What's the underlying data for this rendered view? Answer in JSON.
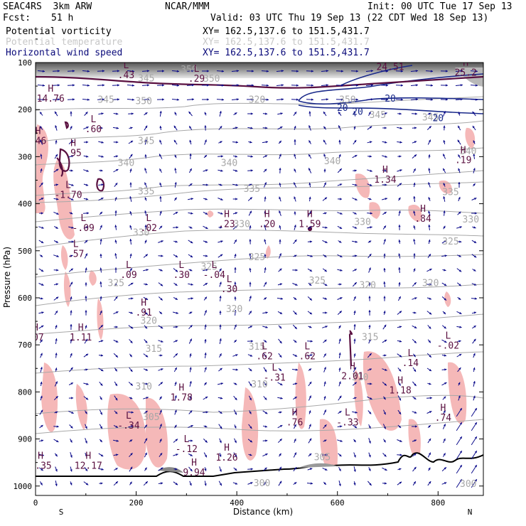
{
  "header": {
    "model": "SEAC4RS  3km ARW",
    "fcst_label": "Fcst:",
    "fcst_value": "51 h",
    "org": "NCAR/MMM",
    "init": "Init: 00 UTC Tue 17 Sep 13",
    "valid": "Valid: 03 UTC Thu 19 Sep 13 (22 CDT Wed 18 Sep 13)",
    "fields": [
      {
        "name": "Potential vorticity",
        "xy": "XY= 162.5,137.6 to 151.5,431.7",
        "color": "#1a1a1a",
        "xy_color": "#000000"
      },
      {
        "name": "Potential temperature",
        "xy": "XY= 162.5,137.6 to 151.5,431.7",
        "color": "#c8c8c8",
        "xy_color": "#c8c8c8"
      },
      {
        "name": "Horizontal wind speed",
        "xy": "XY= 162.5,137.6 to 151.5,431.7",
        "color": "#0a0a7a",
        "xy_color": "#0a0a7a"
      }
    ]
  },
  "colors": {
    "pv_contour": "#5a1040",
    "theta_contour": "#a8a8a8",
    "wind_contour": "#1a2a8a",
    "wind_vector": "#0a0a8a",
    "pink_fill": "#f5b8b8",
    "terrain": "#000000"
  },
  "chart_data": {
    "type": "contour-cross-section",
    "xlabel": "Distance (km)",
    "ylabel": "Pressure (hPa)",
    "xlim": [
      0,
      890
    ],
    "ylim": [
      1020,
      100
    ],
    "x_ticks": [
      0,
      200,
      400,
      600,
      800
    ],
    "y_ticks": [
      100,
      200,
      300,
      400,
      500,
      600,
      700,
      800,
      900,
      1000
    ],
    "x_end_labels": {
      "left": "S",
      "right": "N"
    },
    "theta_labels": [
      {
        "x": 140,
        "p": 185,
        "t": "345"
      },
      {
        "x": 220,
        "p": 140,
        "t": "345"
      },
      {
        "x": 215,
        "p": 188,
        "t": "350"
      },
      {
        "x": 305,
        "p": 121,
        "t": "350"
      },
      {
        "x": 350,
        "p": 141,
        "t": "350"
      },
      {
        "x": 440,
        "p": 185,
        "t": "320"
      },
      {
        "x": 620,
        "p": 185,
        "t": "350"
      },
      {
        "x": 680,
        "p": 218,
        "t": "345"
      },
      {
        "x": 785,
        "p": 223,
        "t": "345"
      },
      {
        "x": 220,
        "p": 273,
        "t": "345"
      },
      {
        "x": 180,
        "p": 320,
        "t": "340"
      },
      {
        "x": 385,
        "p": 320,
        "t": "340"
      },
      {
        "x": 590,
        "p": 316,
        "t": "340"
      },
      {
        "x": 860,
        "p": 295,
        "t": "340"
      },
      {
        "x": 220,
        "p": 380,
        "t": "335"
      },
      {
        "x": 430,
        "p": 375,
        "t": "335"
      },
      {
        "x": 825,
        "p": 382,
        "t": "335"
      },
      {
        "x": 210,
        "p": 468,
        "t": "330"
      },
      {
        "x": 410,
        "p": 450,
        "t": "330"
      },
      {
        "x": 650,
        "p": 445,
        "t": "330"
      },
      {
        "x": 865,
        "p": 440,
        "t": "330"
      },
      {
        "x": 440,
        "p": 520,
        "t": "325"
      },
      {
        "x": 345,
        "p": 540,
        "t": "325"
      },
      {
        "x": 825,
        "p": 487,
        "t": "325"
      },
      {
        "x": 160,
        "p": 575,
        "t": "325"
      },
      {
        "x": 560,
        "p": 570,
        "t": "325"
      },
      {
        "x": 785,
        "p": 575,
        "t": "320"
      },
      {
        "x": 660,
        "p": 580,
        "t": "320"
      },
      {
        "x": 395,
        "p": 630,
        "t": "320"
      },
      {
        "x": 225,
        "p": 655,
        "t": "320"
      },
      {
        "x": 665,
        "p": 690,
        "t": "315"
      },
      {
        "x": 440,
        "p": 710,
        "t": "315"
      },
      {
        "x": 235,
        "p": 715,
        "t": "315"
      },
      {
        "x": 215,
        "p": 795,
        "t": "310"
      },
      {
        "x": 445,
        "p": 790,
        "t": "310"
      },
      {
        "x": 645,
        "p": 775,
        "t": "310"
      },
      {
        "x": 230,
        "p": 860,
        "t": "305"
      },
      {
        "x": 570,
        "p": 945,
        "t": "305"
      },
      {
        "x": 450,
        "p": 1000,
        "t": "300"
      },
      {
        "x": 860,
        "p": 1002,
        "t": "300"
      }
    ],
    "wind_labels": [
      {
        "x": 705,
        "p": 183,
        "t": "20"
      },
      {
        "x": 610,
        "p": 203,
        "t": "20"
      },
      {
        "x": 640,
        "p": 211,
        "t": "20"
      },
      {
        "x": 800,
        "p": 225,
        "t": "20"
      }
    ],
    "extrema": [
      {
        "k": "H",
        "x": 30,
        "p": 180,
        "v": "14.76"
      },
      {
        "k": "L",
        "x": 180,
        "p": 130,
        "v": ".43"
      },
      {
        "k": "L",
        "x": 320,
        "p": 138,
        "v": ".29"
      },
      {
        "k": "H",
        "x": 705,
        "p": 113,
        "v": "24.51"
      },
      {
        "k": "H",
        "x": 855,
        "p": 125,
        "v": "25.2"
      },
      {
        "k": "H",
        "x": 5,
        "p": 270,
        "v": ".46"
      },
      {
        "k": "L",
        "x": 115,
        "p": 245,
        "v": ".60"
      },
      {
        "k": "H",
        "x": 75,
        "p": 296,
        "v": ".95"
      },
      {
        "k": "H",
        "x": 850,
        "p": 311,
        "v": ".19"
      },
      {
        "k": "H",
        "x": 695,
        "p": 352,
        "v": "1.34"
      },
      {
        "k": "L",
        "x": 65,
        "p": 385,
        "v": "-1.70"
      },
      {
        "k": "L",
        "x": 95,
        "p": 455,
        "v": "-.09"
      },
      {
        "k": "L",
        "x": 225,
        "p": 455,
        "v": ".02"
      },
      {
        "k": "H",
        "x": 380,
        "p": 447,
        "v": ".23"
      },
      {
        "k": "H",
        "x": 460,
        "p": 447,
        "v": ".20"
      },
      {
        "k": "H",
        "x": 545,
        "p": 447,
        "v": "1.59"
      },
      {
        "k": "H",
        "x": 770,
        "p": 435,
        "v": ".84"
      },
      {
        "k": "L",
        "x": 80,
        "p": 510,
        "v": ".57"
      },
      {
        "k": "L",
        "x": 185,
        "p": 555,
        "v": ".09"
      },
      {
        "k": "L",
        "x": 290,
        "p": 555,
        "v": ".30"
      },
      {
        "k": "L",
        "x": 355,
        "p": 555,
        "v": "-.04"
      },
      {
        "k": "L",
        "x": 385,
        "p": 585,
        "v": ".30"
      },
      {
        "k": "H",
        "x": 215,
        "p": 635,
        "v": ".91"
      },
      {
        "k": "H",
        "x": 90,
        "p": 688,
        "v": "1.11"
      },
      {
        "k": "H",
        "x": 0,
        "p": 688,
        "v": ".07"
      },
      {
        "k": "L",
        "x": 455,
        "p": 728,
        "v": ".62"
      },
      {
        "k": "L",
        "x": 540,
        "p": 728,
        "v": ".62"
      },
      {
        "k": "L",
        "x": 820,
        "p": 705,
        "v": "-.02"
      },
      {
        "k": "L",
        "x": 745,
        "p": 742,
        "v": ".14"
      },
      {
        "k": "L",
        "x": 475,
        "p": 773,
        "v": "-.31"
      },
      {
        "k": "H",
        "x": 630,
        "p": 770,
        "v": "2.01"
      },
      {
        "k": "H",
        "x": 725,
        "p": 800,
        "v": "1.18"
      },
      {
        "k": "H",
        "x": 290,
        "p": 815,
        "v": "1.78"
      },
      {
        "k": "H",
        "x": 810,
        "p": 858,
        "v": ".74"
      },
      {
        "k": "H",
        "x": 515,
        "p": 868,
        "v": ".76"
      },
      {
        "k": "L",
        "x": 620,
        "p": 868,
        "v": "-.33"
      },
      {
        "k": "L",
        "x": 185,
        "p": 875,
        "v": "-.34"
      },
      {
        "k": "L",
        "x": 300,
        "p": 925,
        "v": "-.12"
      },
      {
        "k": "H",
        "x": 380,
        "p": 943,
        "v": "1.26"
      },
      {
        "k": "H",
        "x": 10,
        "p": 960,
        "v": "-.35"
      },
      {
        "k": "H",
        "x": 105,
        "p": 960,
        "v": "12.17"
      },
      {
        "k": "H",
        "x": 315,
        "p": 975,
        "v": "9.94"
      }
    ]
  }
}
